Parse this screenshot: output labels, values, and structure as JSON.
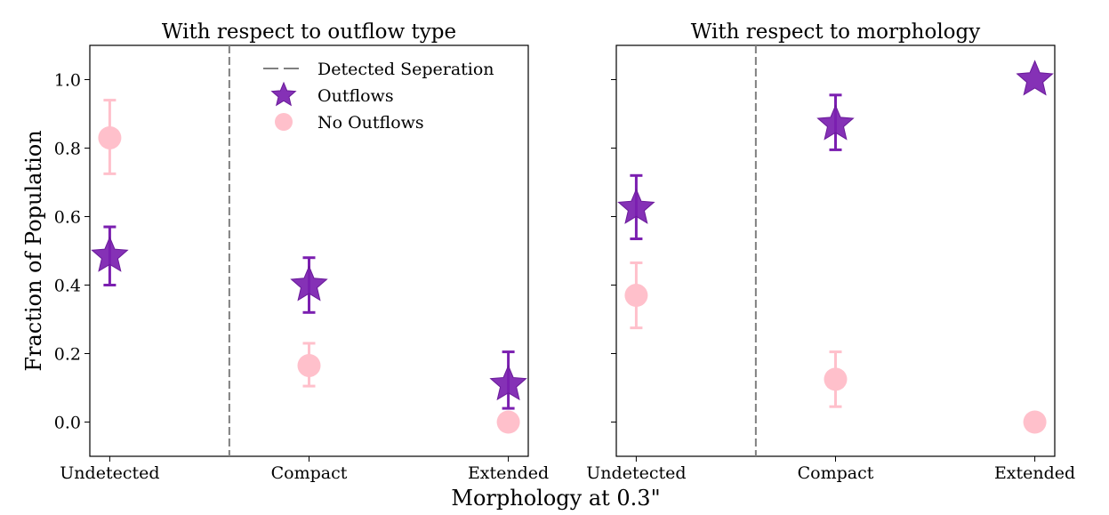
{
  "chart_data": {
    "type": "scatter",
    "ylabel": "Fraction of Population",
    "xlabel": "Morphology at 0.3\"",
    "ylim": [
      -0.1,
      1.1
    ],
    "y_ticks": [
      "0.0",
      "0.2",
      "0.4",
      "0.6",
      "0.8",
      "1.0"
    ],
    "y_tick_values": [
      0.0,
      0.2,
      0.4,
      0.6,
      0.8,
      1.0
    ],
    "categories": [
      "Undetected",
      "Compact",
      "Extended"
    ],
    "separator_position": 0.6,
    "legend": {
      "placement": "upper-right",
      "items": [
        {
          "key": "separator",
          "label": "Detected Seperation",
          "marker": "dashed-line",
          "color": "#808080"
        },
        {
          "key": "outflows",
          "label": "Outflows",
          "marker": "star",
          "color": "#7b1fb0"
        },
        {
          "key": "no_outflows",
          "label": "No Outflows",
          "marker": "circle",
          "color": "#ffc0cb"
        }
      ]
    },
    "panels": [
      {
        "title": "With respect to outflow type",
        "series": [
          {
            "name": "Outflows",
            "color": "#7b1fb0",
            "marker": "star",
            "values": [
              0.485,
              0.4,
              0.11
            ],
            "err_low": [
              0.4,
              0.32,
              0.04
            ],
            "err_high": [
              0.57,
              0.48,
              0.205
            ]
          },
          {
            "name": "No Outflows",
            "color": "#ffc0cb",
            "marker": "circle",
            "values": [
              0.83,
              0.165,
              0.0
            ],
            "err_low": [
              0.725,
              0.105,
              null
            ],
            "err_high": [
              0.94,
              0.23,
              null
            ]
          }
        ]
      },
      {
        "title": "With respect to morphology",
        "series": [
          {
            "name": "Outflows",
            "color": "#7b1fb0",
            "marker": "star",
            "values": [
              0.625,
              0.87,
              1.0
            ],
            "err_low": [
              0.535,
              0.795,
              null
            ],
            "err_high": [
              0.72,
              0.955,
              null
            ]
          },
          {
            "name": "No Outflows",
            "color": "#ffc0cb",
            "marker": "circle",
            "values": [
              0.37,
              0.125,
              0.0
            ],
            "err_low": [
              0.275,
              0.045,
              null
            ],
            "err_high": [
              0.465,
              0.205,
              null
            ]
          }
        ]
      }
    ]
  }
}
